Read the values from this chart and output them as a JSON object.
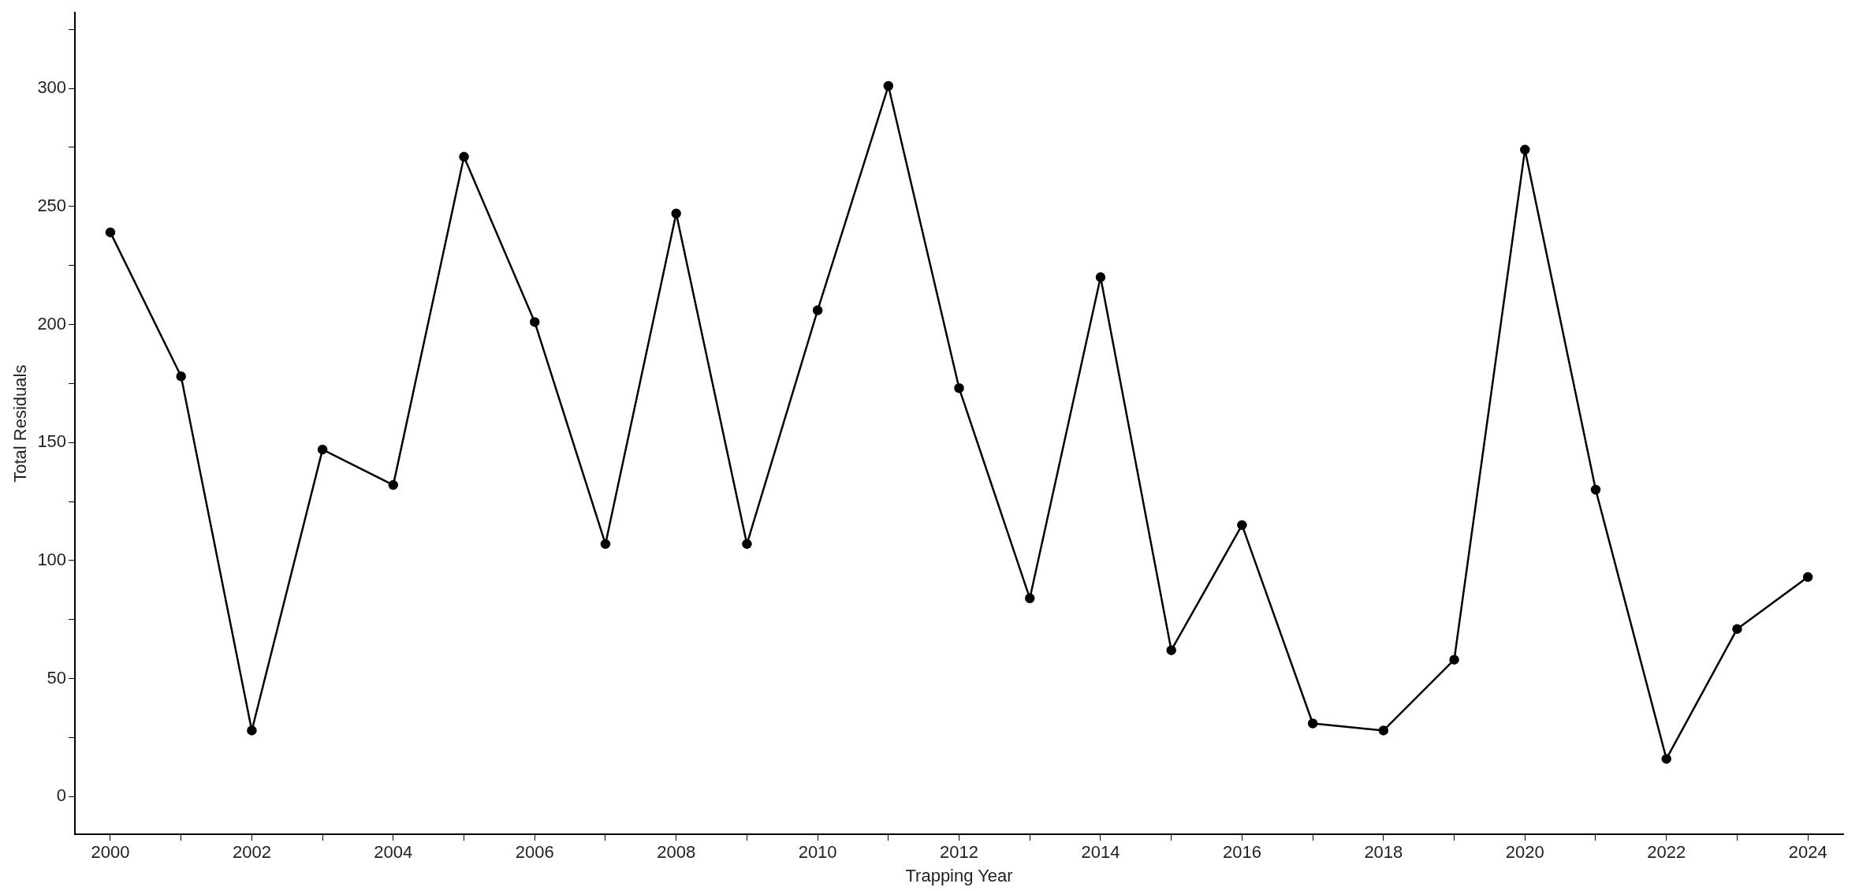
{
  "chart_data": {
    "type": "line",
    "xlabel": "Trapping Year",
    "ylabel": "Total Residuals",
    "x": [
      2000,
      2001,
      2002,
      2003,
      2004,
      2005,
      2006,
      2007,
      2008,
      2009,
      2010,
      2011,
      2012,
      2013,
      2014,
      2015,
      2016,
      2017,
      2018,
      2019,
      2020,
      2021,
      2022,
      2023,
      2024
    ],
    "series": [
      {
        "color": "#000000",
        "values": [
          239,
          178,
          28,
          147,
          132,
          271,
          201,
          107,
          247,
          107,
          206,
          301,
          173,
          84,
          220,
          62,
          115,
          31,
          28,
          58,
          274,
          130,
          16,
          71,
          93
        ]
      }
    ],
    "xlim": [
      1999.5,
      2024.5
    ],
    "xticks": [
      2000,
      {
        "value": 2001,
        "label": null
      },
      2002,
      {
        "value": 2003,
        "label": null
      },
      2004,
      {
        "value": 2005,
        "label": null
      },
      2006,
      {
        "value": 2007,
        "label": null
      },
      2008,
      {
        "value": 2009,
        "label": null
      },
      2010,
      {
        "value": 2011,
        "label": null
      },
      2012,
      {
        "value": 2013,
        "label": null
      },
      2014,
      {
        "value": 2015,
        "label": null
      },
      2016,
      {
        "value": 2017,
        "label": null
      },
      2018,
      {
        "value": 2019,
        "label": null
      },
      2020,
      {
        "value": 2021,
        "label": null
      },
      2022,
      {
        "value": 2023,
        "label": null
      },
      2024
    ],
    "ylim": [
      -16,
      332
    ],
    "yticks": [
      0,
      {
        "value": 25,
        "label": null
      },
      50,
      {
        "value": 75,
        "label": null
      },
      100,
      {
        "value": 125,
        "label": null
      },
      150,
      {
        "value": 175,
        "label": null
      },
      200,
      {
        "value": 225,
        "label": null
      },
      250,
      {
        "value": 275,
        "label": null
      },
      300,
      {
        "value": 325,
        "label": null
      }
    ],
    "grid": false,
    "legend": false,
    "marker": "circle",
    "line_style": "solid"
  }
}
